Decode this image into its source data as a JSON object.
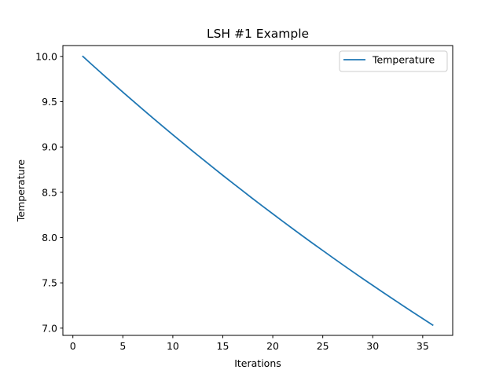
{
  "chart_data": {
    "type": "line",
    "title": "LSH #1 Example",
    "xlabel": "Iterations",
    "ylabel": "Temperature",
    "xlim": [
      -1.0,
      38.0
    ],
    "ylim": [
      6.92,
      10.12
    ],
    "xticks": [
      0,
      5,
      10,
      15,
      20,
      25,
      30,
      35
    ],
    "xtick_labels": [
      "0",
      "5",
      "10",
      "15",
      "20",
      "25",
      "30",
      "35"
    ],
    "yticks": [
      7.0,
      7.5,
      8.0,
      8.5,
      9.0,
      9.5,
      10.0
    ],
    "ytick_labels": [
      "7.0",
      "7.5",
      "8.0",
      "8.5",
      "9.0",
      "9.5",
      "10.0"
    ],
    "grid": false,
    "legend": {
      "position": "top-right"
    },
    "series": [
      {
        "name": "Temperature",
        "color": "#1f77b4",
        "x": [
          1,
          2,
          3,
          4,
          5,
          6,
          7,
          8,
          9,
          10,
          11,
          12,
          13,
          14,
          15,
          16,
          17,
          18,
          19,
          20,
          21,
          22,
          23,
          24,
          25,
          26,
          27,
          28,
          29,
          30,
          31,
          32,
          33,
          34,
          35,
          36
        ],
        "y": [
          10.0,
          9.9,
          9.801,
          9.703,
          9.606,
          9.51,
          9.415,
          9.321,
          9.227,
          9.135,
          9.044,
          8.953,
          8.864,
          8.775,
          8.687,
          8.601,
          8.515,
          8.429,
          8.345,
          8.262,
          8.179,
          8.097,
          8.016,
          7.936,
          7.857,
          7.778,
          7.7,
          7.623,
          7.547,
          7.472,
          7.397,
          7.323,
          7.25,
          7.177,
          7.105,
          7.034
        ]
      }
    ]
  }
}
